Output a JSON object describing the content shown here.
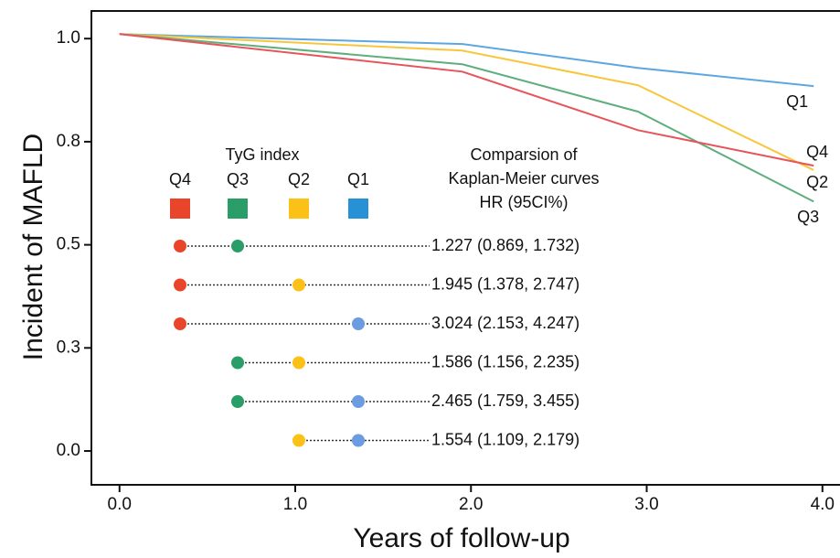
{
  "chart_data": {
    "type": "line",
    "ylabel": "Incident of MAFLD",
    "xlabel": "Years of follow-up",
    "xlim": [
      -0.16,
      4.1
    ],
    "xticks": [
      {
        "value": 0,
        "label": "0.0"
      },
      {
        "value": 1,
        "label": "1.0"
      },
      {
        "value": 2,
        "label": "2.0"
      },
      {
        "value": 3,
        "label": "3.0"
      },
      {
        "value": 4,
        "label": "4.0"
      }
    ],
    "ylim": [
      -0.082,
      1.067
    ],
    "yticks": [
      {
        "value": 1,
        "label": "1.0"
      },
      {
        "value": 0.75,
        "label": "0.8"
      },
      {
        "value": 0.5,
        "label": "0.5"
      },
      {
        "value": 0.25,
        "label": "0.3"
      },
      {
        "value": 0,
        "label": "0.0"
      }
    ],
    "x": [
      0,
      1.95,
      2.95,
      3.95
    ],
    "series": [
      {
        "name": "Q1",
        "color": "#5ea6e0",
        "values": [
          1.011,
          0.987,
          0.929,
          0.885
        ]
      },
      {
        "name": "Q2",
        "color": "#f7c63a",
        "values": [
          1.011,
          0.971,
          0.887,
          0.681
        ]
      },
      {
        "name": "Q3",
        "color": "#5fae7e",
        "values": [
          1.011,
          0.938,
          0.823,
          0.605
        ]
      },
      {
        "name": "Q4",
        "color": "#e6555a",
        "values": [
          1.011,
          0.92,
          0.778,
          0.692
        ]
      }
    ],
    "inset": {
      "title": "TyG index",
      "groups": [
        {
          "name": "Q4",
          "color": "#e8452a",
          "dot": "#e8452a"
        },
        {
          "name": "Q3",
          "color": "#2a9d68",
          "dot": "#2a9d68"
        },
        {
          "name": "Q2",
          "color": "#fcc116",
          "dot": "#fcc116"
        },
        {
          "name": "Q1",
          "color": "#2791d6",
          "dot": "#6b9be0"
        }
      ],
      "heading": [
        "Comparsion of",
        "Kaplan-Meier curves",
        "HR (95CI%)"
      ],
      "comparisons": [
        {
          "pair": [
            "Q4",
            "Q3"
          ],
          "label": "1.227 (0.869, 1.732)"
        },
        {
          "pair": [
            "Q4",
            "Q2"
          ],
          "label": "1.945 (1.378, 2.747)"
        },
        {
          "pair": [
            "Q4",
            "Q1"
          ],
          "label": "3.024 (2.153, 4.247)"
        },
        {
          "pair": [
            "Q3",
            "Q2"
          ],
          "label": "1.586 (1.156, 2.235)"
        },
        {
          "pair": [
            "Q3",
            "Q1"
          ],
          "label": "2.465 (1.759, 3.455)"
        },
        {
          "pair": [
            "Q2",
            "Q1"
          ],
          "label": "1.554 (1.109, 2.179)"
        }
      ]
    }
  }
}
